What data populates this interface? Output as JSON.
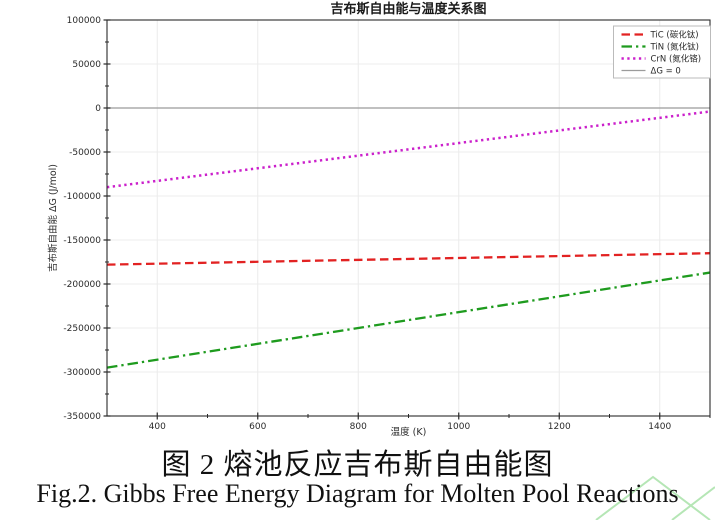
{
  "figure": {
    "captions": {
      "zh": "图 2 熔池反应吉布斯自由能图",
      "en": "Fig.2. Gibbs Free Energy Diagram for Molten Pool Reactions"
    },
    "watermark_color": "#b5e6b5"
  },
  "chart_data": {
    "type": "line",
    "title": "吉布斯自由能与温度关系图",
    "xlabel": "温度 (K)",
    "ylabel": "吉布斯自由能 ΔG (J/mol)",
    "xlim": [
      300,
      1500
    ],
    "ylim": [
      -350000,
      100000
    ],
    "x_major_ticks": {
      "values": [
        400,
        600,
        800,
        1000,
        1200,
        1400
      ],
      "labels": [
        "400",
        "600",
        "800",
        "1000",
        "1200",
        "1400"
      ]
    },
    "x_minor_ticks": [
      500,
      700,
      900,
      1100,
      1300,
      1500
    ],
    "y_major_ticks": {
      "values": [
        100000,
        50000,
        0,
        -50000,
        -100000,
        -150000,
        -200000,
        -250000,
        -300000,
        -350000
      ],
      "labels": [
        "100000",
        "50000",
        "0",
        "-50000",
        "-100000",
        "-150000",
        "-200000",
        "-250000",
        "-300000",
        "-350000"
      ]
    },
    "y_minor_ticks": [
      75000,
      25000,
      -25000,
      -75000,
      -125000,
      -175000,
      -225000,
      -275000,
      -325000
    ],
    "grid": true,
    "grid_color": "#ececec",
    "axis_color": "#2a2a2a",
    "text_color": "#2a2a2a",
    "legend_position": "upper right",
    "series": [
      {
        "name": "TiC (碳化钛)",
        "color": "#e22222",
        "style": "dashed",
        "width": 2.3,
        "x": [
          300,
          1500
        ],
        "y": [
          -178000,
          -165000
        ]
      },
      {
        "name": "TiN (氮化钛)",
        "color": "#1e9b1e",
        "style": "dashdot",
        "width": 2.3,
        "x": [
          300,
          1500
        ],
        "y": [
          -295000,
          -187000
        ]
      },
      {
        "name": "CrN (氮化铬)",
        "color": "#cb20cb",
        "style": "dotted",
        "width": 2.5,
        "x": [
          300,
          1500
        ],
        "y": [
          -90000,
          -4000
        ]
      },
      {
        "name": "ΔG = 0",
        "color": "#9b9b9b",
        "style": "solid",
        "width": 1.2,
        "x": [
          300,
          1500
        ],
        "y": [
          0,
          0
        ]
      }
    ]
  }
}
